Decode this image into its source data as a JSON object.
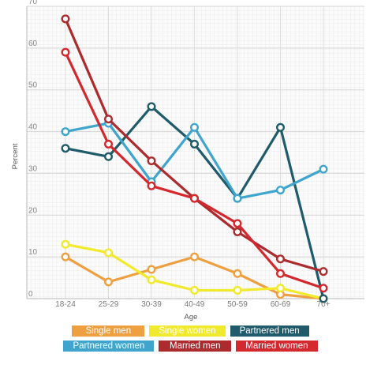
{
  "chart_data": {
    "type": "line",
    "xlabel": "Age",
    "ylabel": "Percent",
    "ylim": [
      0,
      70
    ],
    "yticks": [
      0,
      10,
      20,
      30,
      40,
      50,
      60,
      70
    ],
    "grid": true,
    "legend_position": "bottom",
    "categories": [
      "18-24",
      "25-29",
      "30-39",
      "40-49",
      "50-59",
      "60-69",
      "70+"
    ],
    "series": [
      {
        "name": "Single men",
        "color": "#ee9f3f",
        "values": [
          10,
          4,
          7,
          10,
          6,
          1,
          0
        ]
      },
      {
        "name": "Single women",
        "color": "#f1ea2c",
        "values": [
          13,
          11,
          4.5,
          2,
          2,
          2.5,
          0
        ]
      },
      {
        "name": "Partnered men",
        "color": "#1f5b6a",
        "values": [
          36,
          34,
          46,
          37,
          24,
          41,
          0
        ]
      },
      {
        "name": "Partnered women",
        "color": "#3fa5cc",
        "values": [
          40,
          42,
          28,
          41,
          24,
          26,
          31
        ]
      },
      {
        "name": "Married men",
        "color": "#ab2b2e",
        "values": [
          67,
          43,
          33,
          24,
          16,
          9.5,
          6.5
        ]
      },
      {
        "name": "Married women",
        "color": "#d3282e",
        "values": [
          59,
          37,
          27,
          24,
          18,
          6,
          2.5
        ]
      }
    ]
  }
}
